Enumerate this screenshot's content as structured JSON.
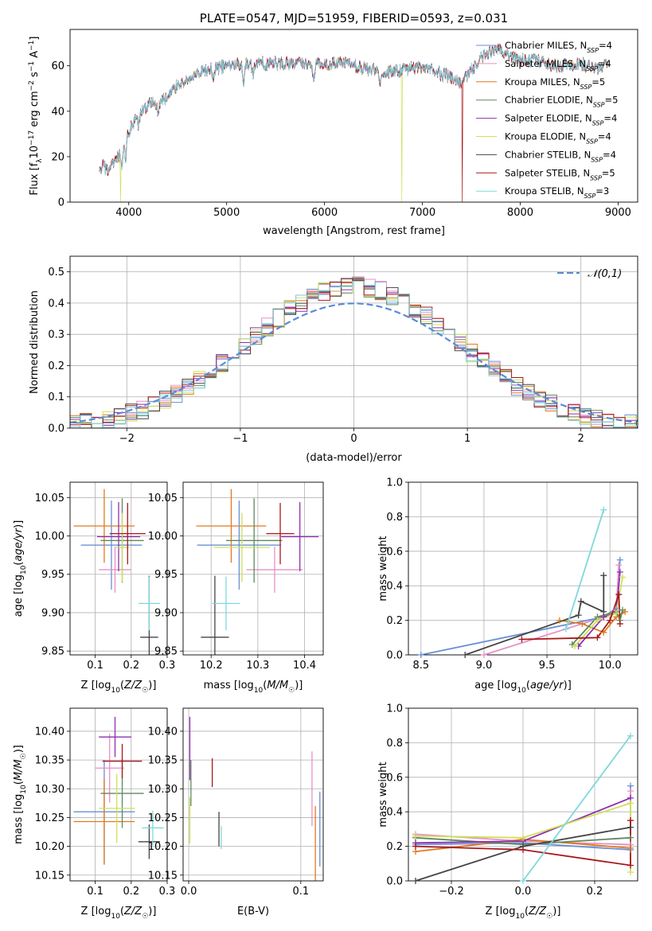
{
  "colors": {
    "series": [
      "#6a8fd6",
      "#e88fc8",
      "#e07a1f",
      "#5e8a5e",
      "#8e2fb0",
      "#cfe05a",
      "#444444",
      "#a8181a",
      "#7fd8dc"
    ]
  },
  "chart_data": [
    {
      "id": "spectrum",
      "type": "line",
      "title": "PLATE=0547, MJD=51959, FIBERID=0593, z=0.031",
      "xlabel": "wavelength [Angstrom, rest frame]",
      "ylabel": "Flux [f_λ 10^-17 erg cm^-2 s^-1 A^-1]",
      "xlim": [
        3400,
        9200
      ],
      "ylim": [
        0,
        76
      ],
      "xticks": [
        4000,
        5000,
        6000,
        7000,
        8000,
        9000
      ],
      "yticks": [
        0,
        20,
        40,
        60
      ],
      "grid": false,
      "legend_position": "upper-right",
      "legend": [
        "Chabrier MILES, N_SSP=4",
        "Salpeter MILES, N_SSP=4",
        "Kroupa MILES, N_SSP=5",
        "Chabrier ELODIE, N_SSP=5",
        "Salpeter ELODIE, N_SSP=4",
        "Kroupa ELODIE, N_SSP=4",
        "Chabrier STELIB, N_SSP=4",
        "Salpeter STELIB, N_SSP=5",
        "Kroupa STELIB, N_SSP=3"
      ],
      "continuum": {
        "x": [
          3700,
          3750,
          3800,
          3850,
          3900,
          3950,
          4000,
          4100,
          4200,
          4300,
          4400,
          4500,
          4600,
          4800,
          5000,
          5200,
          5400,
          5600,
          5800,
          6000,
          6200,
          6400,
          6600,
          6800,
          7000,
          7200,
          7400,
          7600,
          7800,
          8000,
          8200,
          8400,
          8600,
          8800,
          8900
        ],
        "y": [
          17,
          15,
          14,
          17,
          20,
          26,
          31,
          38,
          43,
          44,
          46,
          52,
          54,
          58,
          60,
          61,
          61,
          61,
          61,
          61,
          61,
          59,
          57,
          58,
          60,
          57,
          52,
          64,
          67,
          63,
          62,
          60,
          61,
          59,
          60
        ]
      },
      "drops": [
        {
          "series": 5,
          "x": 3915,
          "to": 0
        },
        {
          "series": 5,
          "x": 6790,
          "to": 0
        },
        {
          "series": 7,
          "x": 7410,
          "to": 0
        }
      ]
    },
    {
      "id": "residuals",
      "type": "line",
      "xlabel": "(data-model)/error",
      "ylabel": "Normed distribution",
      "xlim": [
        -2.5,
        2.5
      ],
      "ylim": [
        0,
        0.55
      ],
      "xticks": [
        -2,
        -1,
        0,
        1,
        2
      ],
      "yticks": [
        0.0,
        0.1,
        0.2,
        0.3,
        0.4,
        0.5
      ],
      "grid": true,
      "legend": [
        "𝒩(0,1)"
      ],
      "legend_position": "upper-right",
      "reference_color": "#5b8bd6",
      "bin_width": 0.1
    },
    {
      "id": "age-vs-z",
      "type": "errorbar",
      "xlabel": "Z [log10(Z/Z☉)]",
      "ylabel": "age [log10(age/yr)]",
      "xlim": [
        0.03,
        0.3
      ],
      "ylim": [
        9.845,
        10.07
      ],
      "xticks": [
        0.1,
        0.2,
        0.3
      ],
      "yticks": [
        9.85,
        9.9,
        9.95,
        10.0,
        10.05
      ],
      "xtick_labels": [
        "0.1",
        "0.2",
        "0.3"
      ],
      "ytick_labels": [
        "9.85",
        "9.90",
        "9.95",
        "10.00",
        "10.05"
      ],
      "grid": true,
      "points": [
        {
          "series": 0,
          "x": 0.145,
          "xerr": 0.085,
          "y": 9.988,
          "yerr": 0.058
        },
        {
          "series": 1,
          "x": 0.155,
          "xerr": 0.045,
          "y": 9.956,
          "yerr": 0.03
        },
        {
          "series": 2,
          "x": 0.125,
          "xerr": 0.085,
          "y": 10.013,
          "yerr": 0.048
        },
        {
          "series": 3,
          "x": 0.175,
          "xerr": 0.06,
          "y": 9.994,
          "yerr": 0.055
        },
        {
          "series": 4,
          "x": 0.165,
          "xerr": 0.06,
          "y": 9.999,
          "yerr": 0.045
        },
        {
          "series": 5,
          "x": 0.175,
          "xerr": 0.02,
          "y": 9.985,
          "yerr": 0.045
        },
        {
          "series": 6,
          "x": 0.25,
          "xerr": 0.025,
          "y": 9.868,
          "yerr": 0.08
        },
        {
          "series": 7,
          "x": 0.19,
          "xerr": 0.05,
          "y": 10.003,
          "yerr": 0.04
        },
        {
          "series": 8,
          "x": 0.25,
          "xerr": 0.03,
          "y": 9.912,
          "yerr": 0.035
        }
      ]
    },
    {
      "id": "age-vs-mass",
      "type": "errorbar",
      "xlabel": "mass [log10(M/M☉)]",
      "xlim": [
        10.14,
        10.44
      ],
      "ylim": [
        9.845,
        10.07
      ],
      "xticks": [
        10.2,
        10.3,
        10.4
      ],
      "yticks": [
        9.85,
        9.9,
        9.95,
        10.0,
        10.05
      ],
      "xtick_labels": [
        "10.2",
        "10.3",
        "10.4"
      ],
      "ytick_labels": [
        "9.85",
        "9.90",
        "9.95",
        "10.00",
        "10.05"
      ],
      "grid": true,
      "points": [
        {
          "series": 0,
          "x": 10.26,
          "xerr": 0.09,
          "y": 9.988,
          "yerr": 0.058
        },
        {
          "series": 1,
          "x": 10.336,
          "xerr": 0.06,
          "y": 9.956,
          "yerr": 0.03
        },
        {
          "series": 2,
          "x": 10.243,
          "xerr": 0.075,
          "y": 10.013,
          "yerr": 0.048
        },
        {
          "series": 3,
          "x": 10.292,
          "xerr": 0.06,
          "y": 9.994,
          "yerr": 0.055
        },
        {
          "series": 4,
          "x": 10.39,
          "xerr": 0.04,
          "y": 9.999,
          "yerr": 0.045
        },
        {
          "series": 5,
          "x": 10.266,
          "xerr": 0.06,
          "y": 9.985,
          "yerr": 0.045
        },
        {
          "series": 6,
          "x": 10.208,
          "xerr": 0.03,
          "y": 9.868,
          "yerr": 0.08
        },
        {
          "series": 7,
          "x": 10.348,
          "xerr": 0.03,
          "y": 10.003,
          "yerr": 0.04
        },
        {
          "series": 8,
          "x": 10.232,
          "xerr": 0.03,
          "y": 9.912,
          "yerr": 0.035
        }
      ]
    },
    {
      "id": "mass-weight-vs-age",
      "type": "line",
      "xlabel": "age [log10(age/yr)]",
      "ylabel": "mass weight",
      "xlim": [
        8.4,
        10.22
      ],
      "ylim": [
        0,
        1.0
      ],
      "xticks": [
        8.5,
        9.0,
        9.5,
        10.0
      ],
      "yticks": [
        0.0,
        0.2,
        0.4,
        0.6,
        0.8,
        1.0
      ],
      "xtick_labels": [
        "8.5",
        "9.0",
        "9.5",
        "10.0"
      ],
      "ytick_labels": [
        "0.0",
        "0.2",
        "0.4",
        "0.6",
        "0.8",
        "1.0"
      ],
      "grid": true,
      "series": [
        {
          "series": 0,
          "x": [
            8.5,
            9.95,
            10.05,
            10.08
          ],
          "y": [
            0.0,
            0.22,
            0.27,
            0.55
          ]
        },
        {
          "series": 1,
          "x": [
            9.0,
            9.95,
            10.05,
            10.07
          ],
          "y": [
            0.0,
            0.22,
            0.26,
            0.52
          ]
        },
        {
          "series": 2,
          "x": [
            9.6,
            9.78,
            9.95,
            10.05,
            10.12
          ],
          "y": [
            0.2,
            0.18,
            0.13,
            0.22,
            0.25
          ]
        },
        {
          "series": 3,
          "x": [
            9.7,
            9.9,
            10.05,
            10.08,
            10.1
          ],
          "y": [
            0.06,
            0.22,
            0.25,
            0.2,
            0.26
          ]
        },
        {
          "series": 4,
          "x": [
            9.75,
            9.95,
            10.05,
            10.08
          ],
          "y": [
            0.05,
            0.22,
            0.24,
            0.48
          ]
        },
        {
          "series": 5,
          "x": [
            9.72,
            9.9,
            10.05,
            10.1
          ],
          "y": [
            0.05,
            0.2,
            0.24,
            0.45
          ]
        },
        {
          "series": 6,
          "x": [
            8.85,
            9.75,
            9.77,
            9.95,
            9.95
          ],
          "y": [
            0.0,
            0.23,
            0.31,
            0.25,
            0.46
          ]
        },
        {
          "series": 7,
          "x": [
            9.3,
            9.9,
            10.0,
            10.07,
            10.08
          ],
          "y": [
            0.09,
            0.1,
            0.2,
            0.35,
            0.18
          ]
        },
        {
          "series": 8,
          "x": [
            9.65,
            9.95
          ],
          "y": [
            0.15,
            0.84
          ]
        }
      ]
    },
    {
      "id": "mass-vs-z",
      "type": "errorbar",
      "xlabel": "Z [log10(Z/Z☉)]",
      "ylabel": "mass [log10(M/M☉)]",
      "xlim": [
        0.03,
        0.3
      ],
      "ylim": [
        10.14,
        10.44
      ],
      "xticks": [
        0.1,
        0.2,
        0.3
      ],
      "yticks": [
        10.15,
        10.2,
        10.25,
        10.3,
        10.35,
        10.4
      ],
      "xtick_labels": [
        "0.1",
        "0.2",
        "0.3"
      ],
      "ytick_labels": [
        "10.15",
        "10.20",
        "10.25",
        "10.30",
        "10.35",
        "10.40"
      ],
      "grid": true,
      "points": [
        {
          "series": 0,
          "x": 0.125,
          "xerr": 0.085,
          "y": 10.26,
          "yerr": 0.09
        },
        {
          "series": 1,
          "x": 0.14,
          "xerr": 0.04,
          "y": 10.336,
          "yerr": 0.06
        },
        {
          "series": 2,
          "x": 0.125,
          "xerr": 0.085,
          "y": 10.243,
          "yerr": 0.075
        },
        {
          "series": 3,
          "x": 0.175,
          "xerr": 0.06,
          "y": 10.292,
          "yerr": 0.06
        },
        {
          "series": 4,
          "x": 0.155,
          "xerr": 0.045,
          "y": 10.39,
          "yerr": 0.035
        },
        {
          "series": 5,
          "x": 0.16,
          "xerr": 0.05,
          "y": 10.266,
          "yerr": 0.06
        },
        {
          "series": 6,
          "x": 0.25,
          "xerr": 0.03,
          "y": 10.208,
          "yerr": 0.03
        },
        {
          "series": 7,
          "x": 0.175,
          "xerr": 0.055,
          "y": 10.348,
          "yerr": 0.03
        },
        {
          "series": 8,
          "x": 0.26,
          "xerr": 0.03,
          "y": 10.232,
          "yerr": 0.03
        }
      ]
    },
    {
      "id": "mass-vs-ebv",
      "type": "errorbar",
      "xlabel": "E(B-V)",
      "xlim": [
        -0.005,
        0.12
      ],
      "ylim": [
        10.14,
        10.44
      ],
      "xticks": [
        0.0,
        0.1
      ],
      "yticks": [
        10.15,
        10.2,
        10.25,
        10.3,
        10.35,
        10.4
      ],
      "xtick_labels": [
        "0.0",
        "0.1"
      ],
      "ytick_labels": [
        "10.15",
        "10.20",
        "10.25",
        "10.30",
        "10.35",
        "10.40"
      ],
      "grid": true,
      "points": [
        {
          "series": 0,
          "x": 0.117,
          "xerr": 0.0,
          "y": 10.23,
          "yerr": 0.065
        },
        {
          "series": 1,
          "x": 0.11,
          "xerr": 0.0,
          "y": 10.3,
          "yerr": 0.065
        },
        {
          "series": 2,
          "x": 0.113,
          "xerr": 0.0,
          "y": 10.2,
          "yerr": 0.07
        },
        {
          "series": 3,
          "x": 0.002,
          "xerr": 0.0,
          "y": 10.31,
          "yerr": 0.04
        },
        {
          "series": 4,
          "x": 0.001,
          "xerr": 0.0,
          "y": 10.37,
          "yerr": 0.055
        },
        {
          "series": 5,
          "x": 0.001,
          "xerr": 0.0,
          "y": 10.245,
          "yerr": 0.04
        },
        {
          "series": 6,
          "x": 0.027,
          "xerr": 0.0,
          "y": 10.23,
          "yerr": 0.03
        },
        {
          "series": 7,
          "x": 0.021,
          "xerr": 0.0,
          "y": 10.328,
          "yerr": 0.025
        },
        {
          "series": 8,
          "x": 0.029,
          "xerr": 0.0,
          "y": 10.215,
          "yerr": 0.02
        }
      ]
    },
    {
      "id": "mass-weight-vs-z",
      "type": "line",
      "xlabel": "Z [log10(Z/Z☉)]",
      "ylabel": "mass weight",
      "xlim": [
        -0.32,
        0.32
      ],
      "ylim": [
        0,
        1.0
      ],
      "xticks": [
        -0.2,
        0.0,
        0.2
      ],
      "yticks": [
        0.0,
        0.2,
        0.4,
        0.6,
        0.8,
        1.0
      ],
      "xtick_labels": [
        "−0.2",
        "0.0",
        "0.2"
      ],
      "ytick_labels": [
        "0.0",
        "0.2",
        "0.4",
        "0.6",
        "0.8",
        "1.0"
      ],
      "grid": true,
      "series": [
        {
          "series": 0,
          "x": [
            -0.3,
            0.0,
            0.3,
            0.3
          ],
          "y": [
            0.21,
            0.22,
            0.18,
            0.55
          ]
        },
        {
          "series": 1,
          "x": [
            -0.3,
            0.0,
            0.3,
            0.3
          ],
          "y": [
            0.27,
            0.23,
            0.21,
            0.52
          ]
        },
        {
          "series": 2,
          "x": [
            -0.3,
            0.0,
            0.3
          ],
          "y": [
            0.17,
            0.24,
            0.19
          ]
        },
        {
          "series": 3,
          "x": [
            -0.3,
            0.0,
            0.3
          ],
          "y": [
            0.25,
            0.21,
            0.25
          ]
        },
        {
          "series": 4,
          "x": [
            -0.3,
            0.0,
            0.3
          ],
          "y": [
            0.22,
            0.23,
            0.48
          ]
        },
        {
          "series": 5,
          "x": [
            -0.3,
            0.0,
            0.3,
            0.3
          ],
          "y": [
            0.26,
            0.25,
            0.45,
            0.05
          ]
        },
        {
          "series": 6,
          "x": [
            -0.3,
            0.0,
            0.3
          ],
          "y": [
            0.0,
            0.2,
            0.31
          ]
        },
        {
          "series": 7,
          "x": [
            -0.3,
            0.0,
            0.3,
            0.3
          ],
          "y": [
            0.2,
            0.18,
            0.09,
            0.35
          ]
        },
        {
          "series": 8,
          "x": [
            0.0,
            0.3
          ],
          "y": [
            0.0,
            0.84
          ]
        }
      ]
    }
  ]
}
